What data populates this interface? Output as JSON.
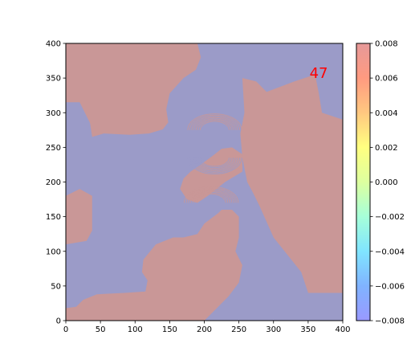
{
  "chart_data": {
    "type": "heatmap",
    "title": "",
    "xlabel": "",
    "ylabel": "",
    "xlim": [
      0,
      400
    ],
    "ylim": [
      0,
      400
    ],
    "x_ticks": [
      0,
      50,
      100,
      150,
      200,
      250,
      300,
      350,
      400
    ],
    "y_ticks": [
      0,
      50,
      100,
      150,
      200,
      250,
      300,
      350,
      400
    ],
    "x_tick_labels": [
      "0",
      "50",
      "100",
      "150",
      "200",
      "250",
      "300",
      "350",
      "400"
    ],
    "y_tick_labels": [
      "0",
      "50",
      "100",
      "150",
      "200",
      "250",
      "300",
      "350",
      "400"
    ],
    "grid": false,
    "colormap": "jet",
    "alpha": 0.4,
    "value_levels": [
      0.008,
      -0.008
    ],
    "level_colors": {
      "positive": "#c99797",
      "negative": "#9b9bc8"
    },
    "annotation": {
      "text": "47",
      "x": 352,
      "y": 350,
      "color": "#ff0000"
    },
    "colorbar": {
      "range": [
        -0.008,
        0.008
      ],
      "ticks": [
        0.008,
        0.006,
        0.004,
        0.002,
        0.0,
        -0.002,
        -0.004,
        -0.006,
        -0.008
      ],
      "tick_labels": [
        "0.008",
        "0.006",
        "0.004",
        "0.002",
        "0.000",
        "−0.002",
        "−0.004",
        "−0.006",
        "−0.008"
      ],
      "colors": [
        "#9999ff",
        "#80b3ff",
        "#80e5ff",
        "#a6ffd9",
        "#ddff9f",
        "#ffff80",
        "#ffc880",
        "#ff9a80",
        "#e69999"
      ]
    },
    "regions": {
      "positive": [
        [
          [
            0,
            400
          ],
          [
            190,
            400
          ],
          [
            195,
            380
          ],
          [
            188,
            362
          ],
          [
            170,
            350
          ],
          [
            150,
            328
          ],
          [
            145,
            305
          ],
          [
            148,
            286
          ],
          [
            140,
            276
          ],
          [
            120,
            270
          ],
          [
            92,
            268
          ],
          [
            55,
            270
          ],
          [
            38,
            265
          ],
          [
            35,
            285
          ],
          [
            20,
            315
          ],
          [
            0,
            315
          ]
        ],
        [
          [
            0,
            110
          ],
          [
            30,
            115
          ],
          [
            38,
            130
          ],
          [
            38,
            180
          ],
          [
            20,
            190
          ],
          [
            0,
            180
          ]
        ],
        [
          [
            0,
            18
          ],
          [
            15,
            20
          ],
          [
            25,
            30
          ],
          [
            45,
            38
          ],
          [
            85,
            40
          ],
          [
            115,
            42
          ],
          [
            118,
            58
          ],
          [
            110,
            70
          ],
          [
            112,
            88
          ],
          [
            130,
            110
          ],
          [
            155,
            120
          ],
          [
            170,
            120
          ],
          [
            190,
            125
          ],
          [
            200,
            140
          ],
          [
            220,
            155
          ],
          [
            225,
            160
          ],
          [
            240,
            160
          ],
          [
            250,
            150
          ],
          [
            250,
            120
          ],
          [
            245,
            100
          ],
          [
            255,
            80
          ],
          [
            250,
            55
          ],
          [
            235,
            35
          ],
          [
            215,
            15
          ],
          [
            200,
            0
          ],
          [
            0,
            0
          ]
        ],
        [
          [
            255,
            350
          ],
          [
            275,
            345
          ],
          [
            290,
            330
          ],
          [
            330,
            345
          ],
          [
            360,
            355
          ],
          [
            365,
            330
          ],
          [
            370,
            300
          ],
          [
            400,
            290
          ],
          [
            400,
            40
          ],
          [
            350,
            40
          ],
          [
            340,
            70
          ],
          [
            300,
            120
          ],
          [
            280,
            165
          ],
          [
            270,
            185
          ],
          [
            262,
            200
          ],
          [
            255,
            235
          ],
          [
            252,
            270
          ],
          [
            258,
            300
          ]
        ],
        [
          [
            165,
            190
          ],
          [
            175,
            175
          ],
          [
            190,
            170
          ],
          [
            205,
            180
          ],
          [
            230,
            200
          ],
          [
            255,
            215
          ],
          [
            255,
            240
          ],
          [
            240,
            250
          ],
          [
            225,
            248
          ],
          [
            215,
            240
          ],
          [
            195,
            225
          ],
          [
            180,
            215
          ],
          [
            170,
            205
          ]
        ]
      ]
    }
  }
}
